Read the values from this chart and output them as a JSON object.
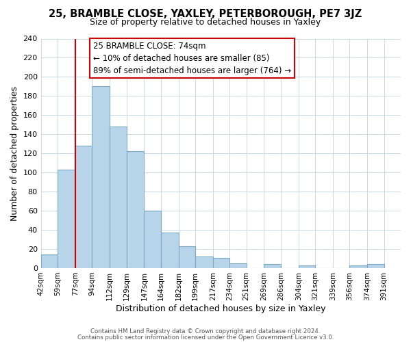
{
  "title": "25, BRAMBLE CLOSE, YAXLEY, PETERBOROUGH, PE7 3JZ",
  "subtitle": "Size of property relative to detached houses in Yaxley",
  "xlabel": "Distribution of detached houses by size in Yaxley",
  "ylabel": "Number of detached properties",
  "bar_edges": [
    42,
    59,
    77,
    94,
    112,
    129,
    147,
    164,
    182,
    199,
    217,
    234,
    251,
    269,
    286,
    304,
    321,
    339,
    356,
    374,
    391
  ],
  "bar_heights": [
    14,
    103,
    128,
    190,
    148,
    122,
    60,
    37,
    23,
    12,
    11,
    5,
    0,
    4,
    0,
    3,
    0,
    0,
    3,
    4
  ],
  "bar_color": "#b8d4e8",
  "bar_edge_color": "#7aaac8",
  "vline_x": 77,
  "vline_color": "#cc0000",
  "annotation_title": "25 BRAMBLE CLOSE: 74sqm",
  "annotation_line1": "← 10% of detached houses are smaller (85)",
  "annotation_line2": "89% of semi-detached houses are larger (764) →",
  "ylim": [
    0,
    240
  ],
  "xlim_left": 42,
  "xlim_right": 408,
  "tick_labels": [
    "42sqm",
    "59sqm",
    "77sqm",
    "94sqm",
    "112sqm",
    "129sqm",
    "147sqm",
    "164sqm",
    "182sqm",
    "199sqm",
    "217sqm",
    "234sqm",
    "251sqm",
    "269sqm",
    "286sqm",
    "304sqm",
    "321sqm",
    "339sqm",
    "356sqm",
    "374sqm",
    "391sqm"
  ],
  "yticks": [
    0,
    20,
    40,
    60,
    80,
    100,
    120,
    140,
    160,
    180,
    200,
    220,
    240
  ],
  "footer1": "Contains HM Land Registry data © Crown copyright and database right 2024.",
  "footer2": "Contains public sector information licensed under the Open Government Licence v3.0.",
  "title_fontsize": 10.5,
  "subtitle_fontsize": 9,
  "xlabel_fontsize": 9,
  "ylabel_fontsize": 9,
  "tick_fontsize": 7.5,
  "ytick_fontsize": 8,
  "annotation_fontsize": 8.5,
  "footer_fontsize": 6.2,
  "grid_color": "#c8d8e8"
}
